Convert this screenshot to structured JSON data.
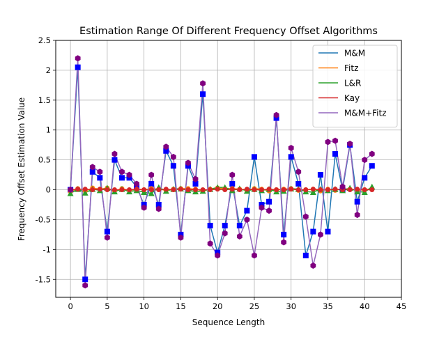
{
  "chart_data": {
    "type": "line",
    "title": "Estimation Range Of Different Frequency Offset Algorithms",
    "xlabel": "Sequence Length",
    "ylabel": "Frequency Offset Estimation Value",
    "xlim": [
      -2,
      45
    ],
    "ylim": [
      -1.8,
      2.5
    ],
    "xticks": [
      0,
      5,
      10,
      15,
      20,
      25,
      30,
      35,
      40,
      45
    ],
    "yticks": [
      -1.5,
      -1,
      -0.5,
      0,
      0.5,
      1,
      1.5,
      2,
      2.5
    ],
    "xtick_labels": [
      "0",
      "5",
      "10",
      "15",
      "20",
      "25",
      "30",
      "35",
      "40",
      "45"
    ],
    "ytick_labels": [
      "-1.5",
      "-1",
      "-0.5",
      "0",
      "0.5",
      "1",
      "1.5",
      "2",
      "2.5"
    ],
    "grid": true,
    "legend_position": "top-right",
    "x": [
      0,
      1,
      2,
      3,
      4,
      5,
      6,
      7,
      8,
      9,
      10,
      11,
      12,
      13,
      14,
      15,
      16,
      17,
      18,
      19,
      20,
      21,
      22,
      23,
      24,
      25,
      26,
      27,
      28,
      29,
      30,
      31,
      32,
      33,
      34,
      35,
      36,
      37,
      38,
      39,
      40,
      41
    ],
    "series": [
      {
        "name": "M&M",
        "color": "#1f77b4",
        "marker": "square",
        "marker_color": "#0000ff",
        "values": [
          0,
          2.05,
          -1.5,
          0.3,
          0.2,
          -0.7,
          0.5,
          0.2,
          0.2,
          0.05,
          -0.25,
          0.1,
          -0.25,
          0.65,
          0.4,
          -0.75,
          0.4,
          0.1,
          1.6,
          -0.6,
          -1.05,
          -0.6,
          0.1,
          -0.6,
          -0.35,
          0.55,
          -0.25,
          -0.2,
          1.2,
          -0.75,
          0.55,
          0.1,
          -1.1,
          -0.7,
          0.25,
          -0.7,
          0.6,
          0,
          0.75,
          -0.2,
          0.2,
          0.4
        ]
      },
      {
        "name": "Fitz",
        "color": "#ff7f0e",
        "marker": "circle",
        "marker_color": "#ff7f0e",
        "values": [
          -0.03,
          0.02,
          -0.02,
          0.03,
          0.01,
          0.03,
          -0.02,
          0.02,
          -0.01,
          0.01,
          0,
          0.02,
          0.01,
          -0.01,
          0.01,
          0.02,
          0.02,
          0.01,
          -0.02,
          0.01,
          0.03,
          0.02,
          0.02,
          0.01,
          -0.01,
          0.02,
          0.01,
          -0.02,
          0,
          0.01,
          0.02,
          -0.01,
          0,
          0.01,
          -0.02,
          0.01,
          -0.01,
          0.02,
          0.01,
          -0.01,
          0,
          0.02
        ]
      },
      {
        "name": "L&R",
        "color": "#2ca02c",
        "marker": "triangle",
        "marker_color": "#2ca02c",
        "values": [
          -0.06,
          0.01,
          -0.05,
          0.01,
          -0.01,
          0.03,
          -0.03,
          0.01,
          -0.03,
          -0.01,
          -0.04,
          -0.06,
          0.04,
          -0.02,
          0.01,
          0.02,
          -0.01,
          -0.03,
          -0.02,
          0.01,
          0.04,
          0.04,
          -0.01,
          0.02,
          -0.02,
          0.01,
          -0.01,
          0.01,
          -0.03,
          -0.02,
          0.02,
          0.01,
          -0.03,
          -0.04,
          0.01,
          -0.01,
          0.01,
          -0.01,
          0.03,
          -0.03,
          -0.04,
          0.05
        ]
      },
      {
        "name": "Kay",
        "color": "#d62728",
        "marker": "circle",
        "marker_color": "#d62728",
        "values": [
          0,
          0.01,
          0.01,
          0,
          0.01,
          0,
          0,
          0,
          0,
          0.01,
          0,
          0,
          0,
          0.01,
          0,
          0.01,
          0,
          0,
          0,
          0,
          0.01,
          0,
          0.01,
          0,
          0.01,
          0,
          0,
          0.01,
          0,
          0,
          0.01,
          0,
          0,
          0.01,
          0,
          0,
          0.01,
          0,
          0,
          0.01,
          0,
          0
        ]
      },
      {
        "name": "M&M+Fitz",
        "color": "#9467bd",
        "marker": "hexagon",
        "marker_color": "#800080",
        "values": [
          0,
          2.2,
          -1.6,
          0.38,
          0.3,
          -0.8,
          0.6,
          0.3,
          0.25,
          0.1,
          -0.3,
          0.25,
          -0.32,
          0.72,
          0.55,
          -0.8,
          0.45,
          0.18,
          1.78,
          -0.9,
          -1.1,
          -0.73,
          0.25,
          -0.78,
          -0.5,
          -1.1,
          -0.3,
          -0.35,
          1.25,
          -0.88,
          0.7,
          0.3,
          -0.45,
          -1.27,
          -0.75,
          0.8,
          0.82,
          0.05,
          0.77,
          -0.42,
          0.5,
          0.6
        ]
      }
    ]
  }
}
